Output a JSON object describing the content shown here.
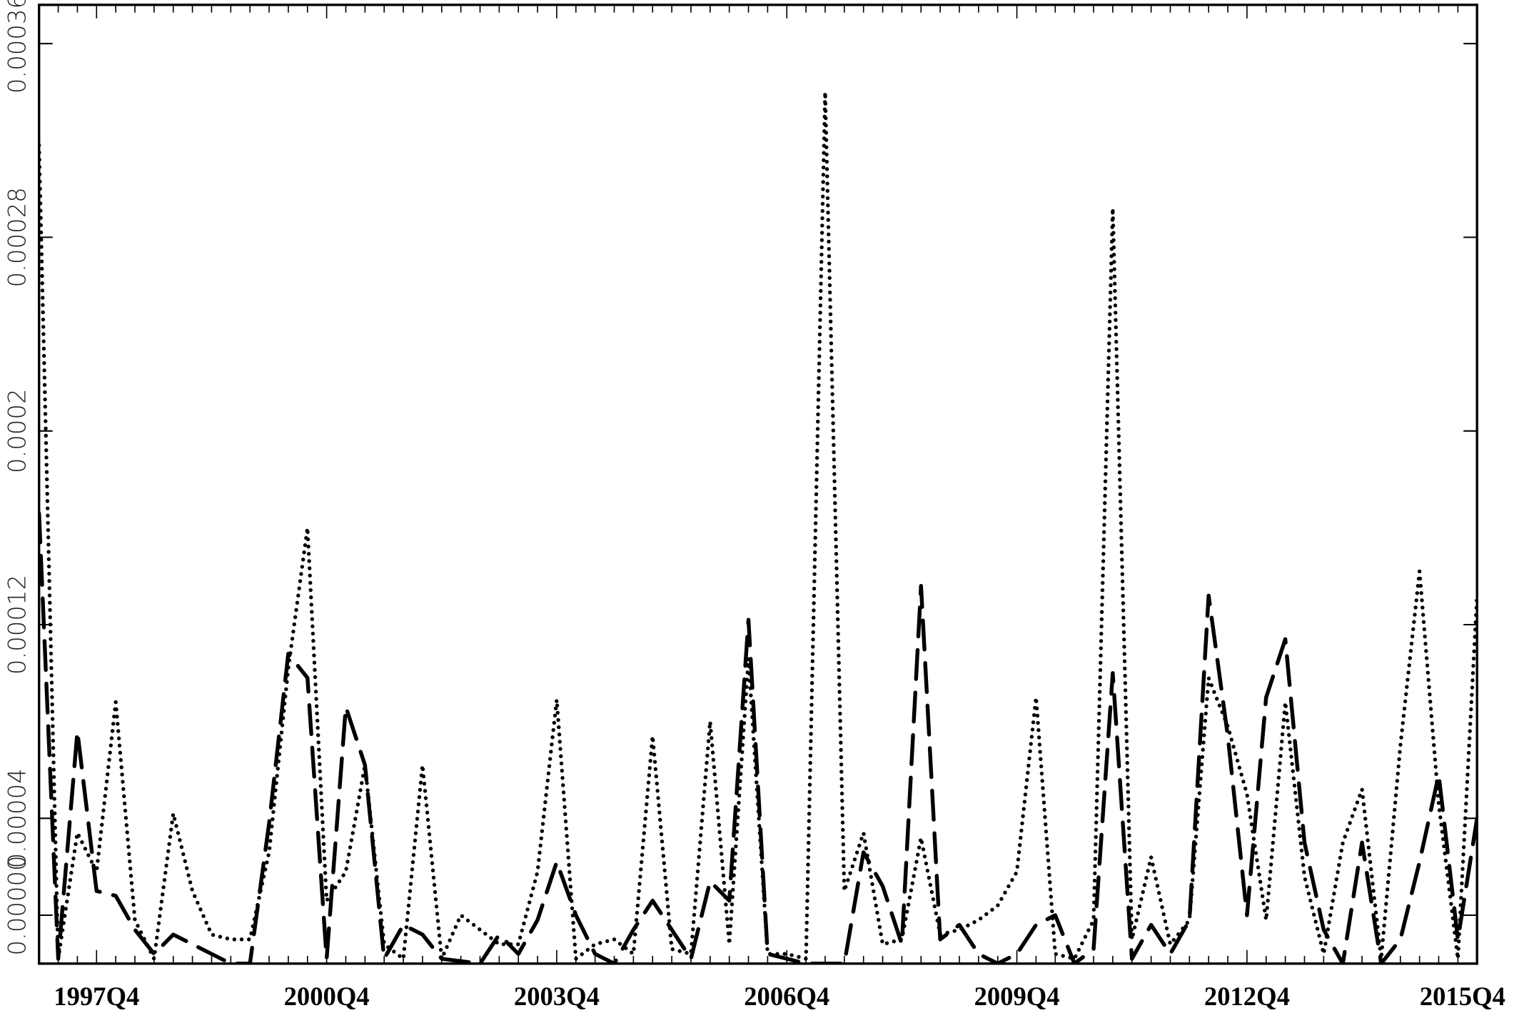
{
  "chart_data": {
    "type": "line",
    "categories": [
      null,
      null,
      null,
      "1997Q4",
      null,
      null,
      null,
      null,
      null,
      null,
      null,
      null,
      null,
      null,
      null,
      "2000Q4",
      null,
      null,
      null,
      null,
      null,
      null,
      null,
      null,
      null,
      null,
      null,
      "2003Q4",
      null,
      null,
      null,
      null,
      null,
      null,
      null,
      null,
      null,
      null,
      null,
      "2006Q4",
      null,
      null,
      null,
      null,
      null,
      null,
      null,
      null,
      null,
      null,
      null,
      "2009Q4",
      null,
      null,
      null,
      null,
      null,
      null,
      null,
      null,
      null,
      null,
      null,
      "2012Q4",
      null,
      null,
      null,
      null,
      null,
      null,
      null,
      null,
      null,
      null,
      null,
      "2015Q4"
    ],
    "series": [
      {
        "color": "#000000",
        "line_style": "dotted",
        "values": [
          0.000318,
          -1.8e-05,
          3.4e-05,
          1.8e-05,
          8.8e-05,
          -2e-06,
          -1.8e-05,
          4.2e-05,
          1e-05,
          -8e-06,
          -1e-05,
          -1e-05,
          2.6e-05,
          0.000102,
          0.00016,
          6e-06,
          1.8e-05,
          6.2e-05,
          -1.2e-05,
          -1.8e-05,
          6.2e-05,
          -1.8e-05,
          0,
          -6e-06,
          -1.2e-05,
          -1.2e-05,
          1.8e-05,
          8.9e-05,
          -1.8e-05,
          -1.2e-05,
          -1e-05,
          -1.6e-05,
          7.4e-05,
          -1.4e-05,
          -1.6e-05,
          8e-05,
          -1.2e-05,
          0.000106,
          -1.6e-05,
          -1.6e-05,
          -1.8e-05,
          0.00034,
          1e-05,
          3.4e-05,
          -1.2e-05,
          -1e-05,
          3.2e-05,
          -8e-06,
          -6e-06,
          -2e-06,
          4e-06,
          1.8e-05,
          9e-05,
          -1.6e-05,
          -1.8e-05,
          -2e-06,
          0.000292,
          -1e-05,
          2.4e-05,
          -1.2e-05,
          -2e-06,
          9.8e-05,
          7.8e-05,
          5e-05,
          -2e-06,
          8.8e-05,
          1.6e-05,
          -1.6e-05,
          3e-05,
          5.2e-05,
          -1.8e-05,
          7e-05,
          0.000142,
          4.6e-05,
          -1.8e-05,
          0.000132
        ]
      },
      {
        "color": "#000000",
        "line_style": "dashed",
        "values": [
          0.000166,
          -1.8e-05,
          7.6e-05,
          1e-05,
          8e-06,
          -6e-06,
          -1.6e-05,
          -8e-06,
          -1.2e-05,
          -1.6e-05,
          -2e-05,
          -2e-05,
          3.8e-05,
          0.000108,
          9.8e-05,
          -1.8e-05,
          8.6e-05,
          6.2e-05,
          -1.8e-05,
          -4e-06,
          -8e-06,
          -1.8e-05,
          -1.9e-05,
          -2e-05,
          -8e-06,
          -1.6e-05,
          -2e-06,
          2.2e-05,
          0,
          -1.6e-05,
          -2e-05,
          -6e-06,
          6e-06,
          -6e-06,
          -1.8e-05,
          1.4e-05,
          6e-06,
          0.000122,
          -1.6e-05,
          -1.8e-05,
          -2e-05,
          -2e-05,
          -2e-05,
          2.6e-05,
          1.2e-05,
          -1.2e-05,
          0.000136,
          -1e-05,
          -4e-06,
          -1.6e-05,
          -2e-05,
          -1.6e-05,
          -4e-06,
          0,
          -2e-05,
          -1.4e-05,
          0.0001,
          -1.8e-05,
          -4e-06,
          -1.6e-05,
          -2e-06,
          0.000132,
          7.4e-05,
          0,
          9e-05,
          0.000114,
          3e-05,
          -6e-06,
          -2e-05,
          3e-05,
          -2e-05,
          -1e-05,
          2.2e-05,
          5.8e-05,
          -1e-05,
          4e-05
        ]
      }
    ],
    "ylim": [
      -2e-05,
      0.000376
    ],
    "yticks": [
      {
        "value": 0,
        "label": "0.00000"
      },
      4e-05,
      0.00012,
      0.0002,
      0.00028,
      0.00036
    ]
  }
}
